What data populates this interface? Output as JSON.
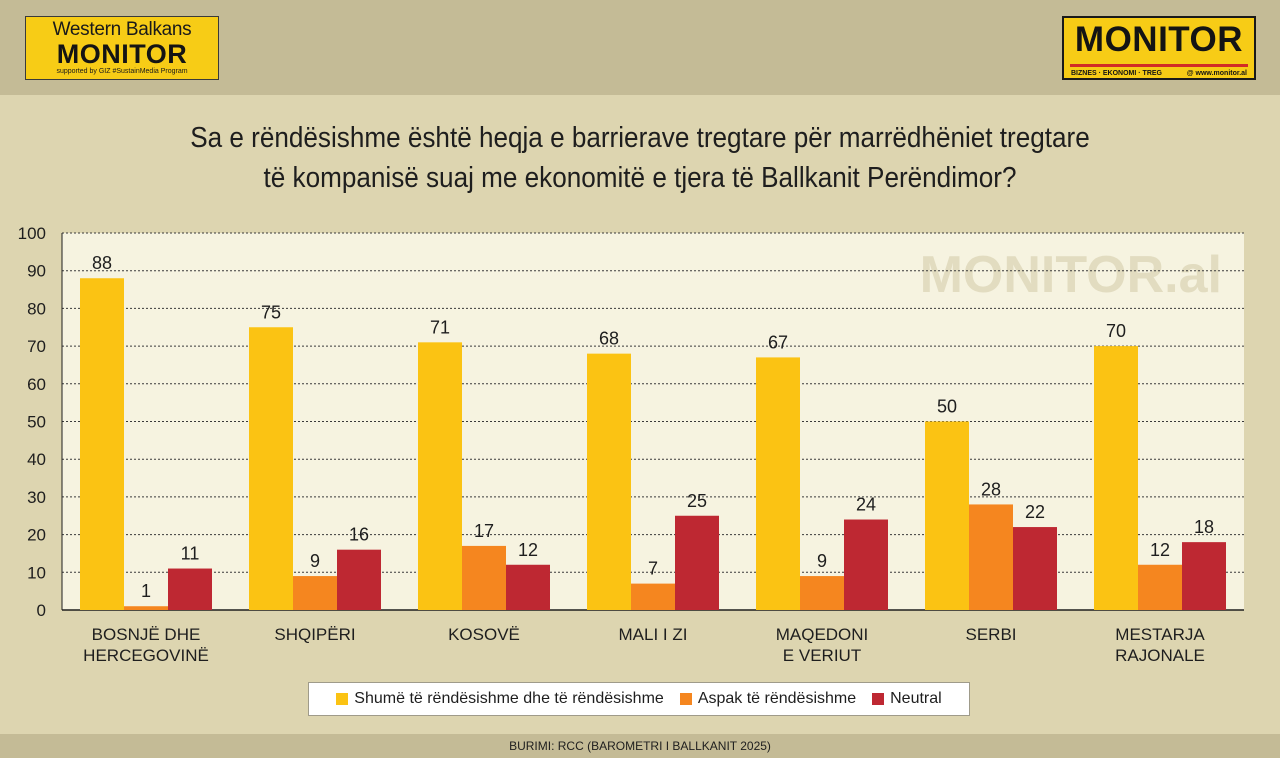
{
  "logos": {
    "wbm_top": "Western Balkans",
    "wbm_main": "MONITOR",
    "wbm_sub": "supported by GIZ #SustainMedia Program",
    "monitor_main": "MONITOR",
    "monitor_tag": "BIZNES · EKONOMI · TREG",
    "monitor_url": "@ www.monitor.al"
  },
  "watermark": "MONITOR.al",
  "footer": {
    "source": "BURIMI: RCC (BAROMETRI I BALLKANIT 2025)"
  },
  "chart_data": {
    "type": "bar",
    "title": "Sa e rëndësishme është heqja e barrierave tregtare për marrëdhëniet tregtare të kompanisë suaj me ekonomitë e tjera të Ballkanit Perëndimor?",
    "title_lines": [
      "Sa e rëndësishme është heqja e barrierave tregtare për marrëdhëniet tregtare",
      "të kompanisë suaj me ekonomitë e tjera të Ballkanit Perëndimor?"
    ],
    "categories": [
      [
        "BOSNJË DHE",
        "HERCEGOVINË"
      ],
      [
        "SHQIPËRI"
      ],
      [
        "KOSOVË"
      ],
      [
        "MALI I ZI"
      ],
      [
        "MAQEDONI",
        "E VERIUT"
      ],
      [
        "SERBI"
      ],
      [
        "MESTARJA",
        "RAJONALE"
      ]
    ],
    "series": [
      {
        "name": "Shumë të rëndësishme dhe të rëndësishme",
        "color": "#fbc313",
        "values": [
          88,
          75,
          71,
          68,
          67,
          50,
          70
        ]
      },
      {
        "name": "Aspak të rëndësishme",
        "color": "#f5861f",
        "values": [
          1,
          9,
          17,
          7,
          9,
          28,
          12
        ]
      },
      {
        "name": "Neutral",
        "color": "#be2832",
        "values": [
          11,
          16,
          12,
          25,
          24,
          22,
          18
        ]
      }
    ],
    "ylim": [
      0,
      100
    ],
    "yticks": [
      0,
      10,
      20,
      30,
      40,
      50,
      60,
      70,
      80,
      90,
      100
    ],
    "grid": true,
    "legend_position": "bottom",
    "xlabel": "",
    "ylabel": ""
  }
}
